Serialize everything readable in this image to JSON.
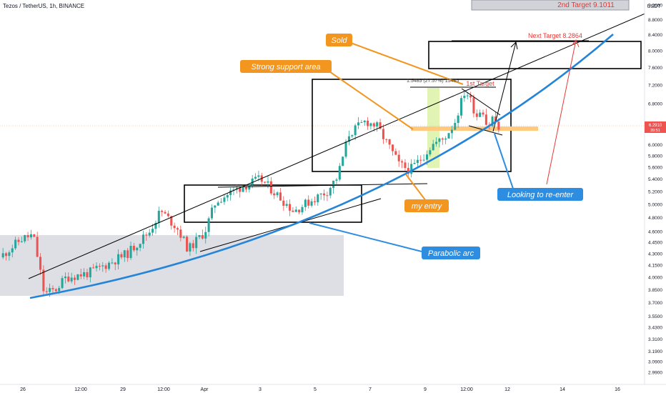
{
  "symbol": "Tezos / TetherUS, 1h, BINANCE",
  "currency": "USDT",
  "price_tag": {
    "price": "6.2910",
    "countdown": "39:51"
  },
  "colors": {
    "up": "#26a69a",
    "down": "#ef5350",
    "arc": "#2384d8",
    "callout_orange": "#f29620",
    "callout_blue": "#2d8de0",
    "target_red": "#e53935"
  },
  "chart_data": {
    "type": "candlestick",
    "symbol": "Tezos / TetherUS",
    "interval": "1h",
    "exchange": "BINANCE",
    "y_axis": {
      "scale": "log",
      "range": [
        2.9,
        9.2
      ]
    },
    "y_ticks": [
      "9.2000",
      "8.8000",
      "8.4000",
      "8.0000",
      "7.6000",
      "7.2000",
      "6.8000",
      "6.4000",
      "6.0000",
      "5.8000",
      "5.6000",
      "5.4000",
      "5.2000",
      "5.0000",
      "4.8000",
      "4.6000",
      "4.4500",
      "4.3000",
      "4.1500",
      "4.0000",
      "3.8500",
      "3.7000",
      "3.5500",
      "3.4300",
      "3.3100",
      "3.1900",
      "3.0900",
      "2.9900"
    ],
    "x_ticks": [
      "26",
      "12:00",
      "29",
      "12:00",
      "Apr",
      "3",
      "5",
      "7",
      "9",
      "12:00",
      "12",
      "14",
      "16"
    ],
    "price_path": [
      [
        0,
        4.25
      ],
      [
        4,
        4.5
      ],
      [
        6,
        4.55
      ],
      [
        8,
        3.8
      ],
      [
        10,
        3.85
      ],
      [
        12,
        4.0
      ],
      [
        16,
        4.05
      ],
      [
        19,
        4.15
      ],
      [
        23,
        4.3
      ],
      [
        27,
        4.6
      ],
      [
        29,
        4.9
      ],
      [
        32,
        4.65
      ],
      [
        34,
        4.35
      ],
      [
        37,
        4.6
      ],
      [
        39,
        5.05
      ],
      [
        43,
        5.25
      ],
      [
        47,
        5.4
      ],
      [
        50,
        5.15
      ],
      [
        53,
        4.9
      ],
      [
        56,
        5.05
      ],
      [
        59,
        5.2
      ],
      [
        61,
        5.45
      ],
      [
        63,
        6.2
      ],
      [
        66,
        6.45
      ],
      [
        68,
        6.35
      ],
      [
        70,
        6.0
      ],
      [
        72,
        5.65
      ],
      [
        74,
        5.55
      ],
      [
        76,
        5.75
      ],
      [
        78,
        6.0
      ],
      [
        80,
        6.1
      ],
      [
        82,
        6.4
      ],
      [
        84,
        7.1
      ],
      [
        85,
        6.85
      ],
      [
        86,
        6.55
      ],
      [
        87,
        6.75
      ],
      [
        88,
        6.3
      ],
      [
        89,
        6.55
      ],
      [
        90,
        6.29
      ]
    ],
    "last_price": 6.291,
    "annotations": {
      "callouts": [
        "Sold",
        "Strong support area",
        "my entry",
        "Looking to re-enter",
        "Parabolic arc"
      ],
      "targets": [
        "1st Target",
        "Next Target 8.2864",
        "2nd Target 9.1011"
      ],
      "measure": "1.5485 (27.57%) 15485"
    }
  }
}
